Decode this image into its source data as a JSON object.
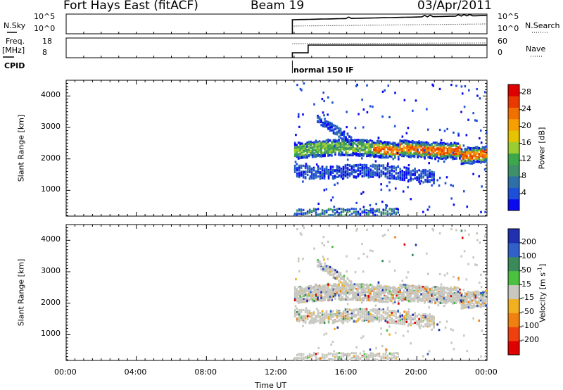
{
  "header": {
    "radar": "Fort Hays East (fitACF)",
    "beam": "Beam 19",
    "date": "03/Apr/2011"
  },
  "top_panels": {
    "nsky_label": "N.Sky",
    "noise_ticks": [
      "10^5",
      "10^0"
    ],
    "nsearch_label": "N.Search",
    "nsearch_ticks": [
      "10^5",
      "10^0"
    ],
    "freq_label": "Freq.",
    "freq_unit": "[MHz]",
    "freq_ticks": [
      "18",
      "8"
    ],
    "nave_label": "Nave",
    "nave_ticks": [
      "60",
      "0"
    ],
    "cpid_label": "CPID",
    "cpid_value": "normal 150 IF"
  },
  "chart_data": [
    {
      "type": "heatmap",
      "quantity": "Power",
      "ylabel": "Slant Range [km]",
      "xlabel": "Time UT",
      "x_ticks": [
        "00:00",
        "04:00",
        "08:00",
        "12:00",
        "16:00",
        "20:00",
        "00:00"
      ],
      "xlim_hours": [
        0,
        24
      ],
      "y_ticks": [
        1000,
        2000,
        3000,
        4000
      ],
      "ylim": [
        180,
        4500
      ],
      "colorbar": {
        "label": "Power [dB]",
        "ticks": [
          "4",
          "8",
          "12",
          "16",
          "20",
          "24",
          "28"
        ],
        "range": [
          0,
          30
        ],
        "colors": [
          "#0a0af0",
          "#1e4fd8",
          "#2e6fa8",
          "#3f8f6a",
          "#3ca84a",
          "#9acd32",
          "#e6c200",
          "#f5a000",
          "#f07000",
          "#e83a00",
          "#e00000"
        ]
      },
      "data_start_hour": 12.9,
      "features": [
        {
          "name": "main band",
          "hours": [
            13.0,
            24.0
          ],
          "range_km": [
            1900,
            2600
          ],
          "typical": "20-28 dB"
        },
        {
          "name": "lower band",
          "hours": [
            13.0,
            21.0
          ],
          "range_km": [
            1300,
            1900
          ],
          "typical": "4-10 dB"
        },
        {
          "name": "upper patch",
          "hours": [
            14.3,
            16.0
          ],
          "range_km": [
            2800,
            3500
          ],
          "typical": "4-10 dB"
        },
        {
          "name": "ground scatter",
          "hours": [
            13.0,
            19.0
          ],
          "range_km": [
            180,
            400
          ],
          "typical": "4-12 dB"
        }
      ]
    },
    {
      "type": "heatmap",
      "quantity": "Velocity",
      "ylabel": "Slant Range [km]",
      "xlabel": "Time UT",
      "x_ticks": [
        "00:00",
        "04:00",
        "08:00",
        "12:00",
        "16:00",
        "20:00",
        "00:00"
      ],
      "xlim_hours": [
        0,
        24
      ],
      "y_ticks": [
        1000,
        2000,
        3000,
        4000
      ],
      "ylim": [
        180,
        4500
      ],
      "colorbar": {
        "label_main": "Velocity [m s",
        "label_sup": "-1",
        "label_close": "]",
        "ticks": [
          "200",
          "100",
          "50",
          "15",
          "-15",
          "-50",
          "-100",
          "-200"
        ],
        "colors": [
          "#2030b0",
          "#3060c8",
          "#3a8a5a",
          "#4cc040",
          "#c8c8c0",
          "#f0b020",
          "#f08010",
          "#f04010",
          "#e00000"
        ]
      },
      "data_start_hour": 12.9,
      "features": [
        {
          "name": "main band",
          "hours": [
            13.0,
            24.0
          ],
          "range_km": [
            1900,
            2600
          ],
          "typical": "-15 to 15 m/s"
        },
        {
          "name": "lower band",
          "hours": [
            13.0,
            21.0
          ],
          "range_km": [
            1300,
            1900
          ],
          "typical": "-15 to 15 m/s"
        },
        {
          "name": "upper patch",
          "hours": [
            14.3,
            16.0
          ],
          "range_km": [
            2800,
            3500
          ],
          "typical": "-15 to 15 m/s"
        },
        {
          "name": "ground scatter",
          "hours": [
            13.0,
            19.0
          ],
          "range_km": [
            180,
            400
          ],
          "typical": "-15 to 15 m/s"
        }
      ]
    }
  ]
}
